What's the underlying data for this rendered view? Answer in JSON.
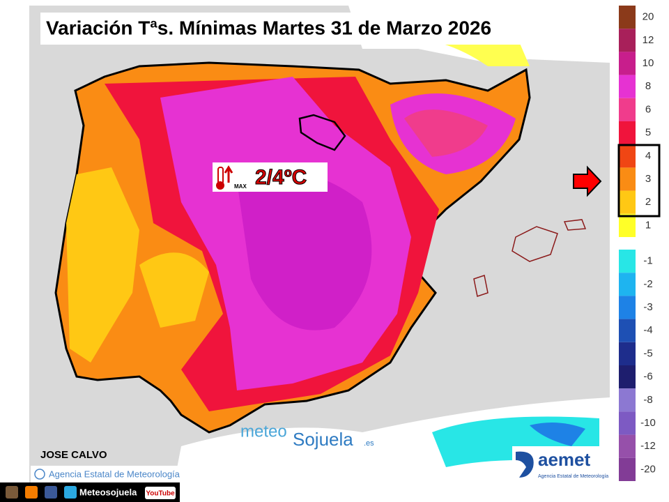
{
  "title": "Variación Tªs. Mínimas Martes 31 de Marzo 2026",
  "callout": {
    "icon_label": "MAX",
    "text": "2/4ºC"
  },
  "author": "JOSE CALVO",
  "credit": "Agencia Estatal de Meteorología",
  "watermark": {
    "part1": "meteo",
    "part2": "Sojuela",
    "suffix": ".es"
  },
  "logo": {
    "name": "aemet",
    "subtitle": "Agencia Estatal de Meteorología"
  },
  "social": {
    "handle": "Meteosojuela",
    "youtube": "YouTube"
  },
  "legend": [
    {
      "label": 20,
      "color": "#8b3a1a"
    },
    {
      "label": 12,
      "color": "#a8205a"
    },
    {
      "label": 10,
      "color": "#c81e8c"
    },
    {
      "label": 8,
      "color": "#e632d2"
    },
    {
      "label": 6,
      "color": "#f03c8c"
    },
    {
      "label": 5,
      "color": "#f0143c"
    },
    {
      "label": 4,
      "color": "#f04614"
    },
    {
      "label": 3,
      "color": "#fa8c14"
    },
    {
      "label": 2,
      "color": "#ffc814"
    },
    {
      "label": 1,
      "color": "#ffff28"
    },
    {
      "label": -1,
      "color": "#28e6e6"
    },
    {
      "label": -2,
      "color": "#1eb4f0"
    },
    {
      "label": -3,
      "color": "#1e82e6"
    },
    {
      "label": -4,
      "color": "#1e50b4"
    },
    {
      "label": -5,
      "color": "#1e2d8c"
    },
    {
      "label": -6,
      "color": "#1e1e6e"
    },
    {
      "label": -8,
      "color": "#8c78d2"
    },
    {
      "label": -10,
      "color": "#7d5ac3"
    },
    {
      "label": -12,
      "color": "#9650aa"
    },
    {
      "label": -20,
      "color": "#823c96"
    }
  ]
}
